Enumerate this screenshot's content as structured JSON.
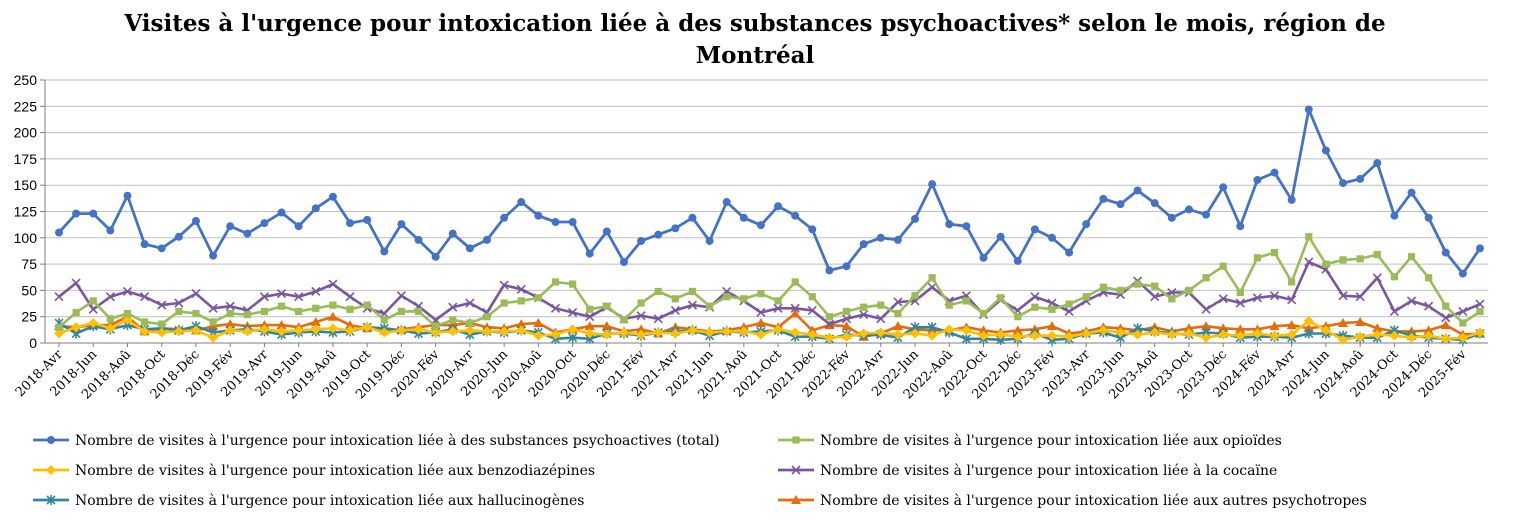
{
  "chart_data": {
    "type": "line",
    "title": "Visites à l'urgence pour intoxication liée à des substances psychoactives* selon le mois, région de Montréal",
    "xlabel": "",
    "ylabel": "",
    "ylim": [
      0,
      250
    ],
    "yticks": [
      0,
      25,
      50,
      75,
      100,
      125,
      150,
      175,
      200,
      225,
      250
    ],
    "grid": true,
    "legend_position": "bottom",
    "x": [
      "2018-Avr",
      "2018-Mai",
      "2018-Jun",
      "2018-Jul",
      "2018-Aoû",
      "2018-Sep",
      "2018-Oct",
      "2018-Nov",
      "2018-Déc",
      "2019-Jan",
      "2019-Fév",
      "2019-Mar",
      "2019-Avr",
      "2019-Mai",
      "2019-Jun",
      "2019-Jul",
      "2019-Aoû",
      "2019-Sep",
      "2019-Oct",
      "2019-Nov",
      "2019-Déc",
      "2020-Jan",
      "2020-Fév",
      "2020-Mar",
      "2020-Avr",
      "2020-Mai",
      "2020-Jun",
      "2020-Jul",
      "2020-Aoû",
      "2020-Sep",
      "2020-Oct",
      "2020-Nov",
      "2020-Déc",
      "2021-Jan",
      "2021-Fév",
      "2021-Mar",
      "2021-Avr",
      "2021-Mai",
      "2021-Jun",
      "2021-Jul",
      "2021-Aoû",
      "2021-Sep",
      "2021-Oct",
      "2021-Nov",
      "2021-Déc",
      "2022-Jan",
      "2022-Fév",
      "2022-Mar",
      "2022-Avr",
      "2022-Mai",
      "2022-Jun",
      "2022-Jul",
      "2022-Aoû",
      "2022-Sep",
      "2022-Oct",
      "2022-Nov",
      "2022-Déc",
      "2023-Jan",
      "2023-Fév",
      "2023-Mar",
      "2023-Avr",
      "2023-Mai",
      "2023-Jun",
      "2023-Jul",
      "2023-Aoû",
      "2023-Sep",
      "2023-Oct",
      "2023-Nov",
      "2023-Déc",
      "2024-Jan",
      "2024-Fév",
      "2024-Mar",
      "2024-Avr",
      "2024-Mai",
      "2024-Jun",
      "2024-Jul",
      "2024-Aoû",
      "2024-Sep",
      "2024-Oct",
      "2024-Nov",
      "2024-Déc",
      "2025-Jan",
      "2025-Fév",
      "2025-Mar"
    ],
    "xtick_labels": [
      "2018-Avr",
      "2018-Jun",
      "2018-Aoû",
      "2018-Oct",
      "2018-Déc",
      "2019-Fév",
      "2019-Avr",
      "2019-Jun",
      "2019-Aoû",
      "2019-Oct",
      "2019-Déc",
      "2020-Fév",
      "2020-Avr",
      "2020-Jun",
      "2020-Aoû",
      "2020-Oct",
      "2020-Déc",
      "2021-Fév",
      "2021-Avr",
      "2021-Jun",
      "2021-Aoû",
      "2021-Oct",
      "2021-Déc",
      "2022-Fév",
      "2022-Avr",
      "2022-Jun",
      "2022-Aoû",
      "2022-Oct",
      "2022-Déc",
      "2023-Fév",
      "2023-Avr",
      "2023-Jun",
      "2023-Aoû",
      "2023-Oct",
      "2023-Déc",
      "2024-Fév",
      "2024-Avr",
      "2024-Jun",
      "2024-Aoû",
      "2024-Oct",
      "2024-Déc",
      "2025-Fév"
    ],
    "series": [
      {
        "name": "Nombre de visites à l'urgence pour intoxication liée à des substances psychoactives (total)",
        "color": "#4472c4",
        "marker": "circle",
        "values": [
          105,
          123,
          123,
          107,
          140,
          94,
          90,
          101,
          116,
          83,
          111,
          104,
          114,
          124,
          111,
          128,
          139,
          114,
          117,
          87,
          113,
          98,
          82,
          104,
          90,
          98,
          119,
          134,
          121,
          115,
          115,
          85,
          106,
          77,
          97,
          103,
          109,
          119,
          97,
          134,
          119,
          112,
          130,
          121,
          108,
          69,
          73,
          94,
          100,
          98,
          118,
          151,
          113,
          111,
          81,
          101,
          78,
          108,
          100,
          86,
          113,
          137,
          132,
          145,
          133,
          119,
          127,
          122,
          148,
          111,
          155,
          162,
          136,
          222,
          183,
          152,
          156,
          171,
          121,
          143,
          119,
          86,
          66,
          90
        ]
      },
      {
        "name": "Nombre de visites à l'urgence pour intoxication liée aux opioïdes",
        "color": "#9bbb59",
        "marker": "square",
        "values": [
          15,
          29,
          40,
          23,
          28,
          20,
          18,
          30,
          28,
          20,
          28,
          27,
          30,
          35,
          30,
          33,
          36,
          32,
          36,
          22,
          30,
          30,
          16,
          22,
          19,
          25,
          38,
          40,
          43,
          58,
          56,
          32,
          35,
          22,
          38,
          49,
          42,
          49,
          35,
          44,
          42,
          47,
          40,
          58,
          44,
          25,
          30,
          34,
          36,
          28,
          45,
          62,
          36,
          40,
          28,
          43,
          25,
          34,
          32,
          37,
          44,
          53,
          50,
          56,
          54,
          42,
          50,
          62,
          73,
          48,
          81,
          86,
          58,
          101,
          75,
          79,
          80,
          84,
          63,
          82,
          62,
          35,
          19,
          30
        ]
      },
      {
        "name": "Nombre de visites à l'urgence pour intoxication liée aux benzodiazépines",
        "color": "#ffc000",
        "marker": "diamond",
        "values": [
          9,
          15,
          19,
          14,
          22,
          11,
          10,
          11,
          12,
          5,
          12,
          11,
          13,
          11,
          12,
          13,
          14,
          12,
          15,
          10,
          12,
          13,
          10,
          11,
          12,
          11,
          11,
          12,
          7,
          8,
          13,
          9,
          8,
          10,
          8,
          10,
          9,
          12,
          10,
          11,
          11,
          8,
          13,
          10,
          8,
          5,
          6,
          9,
          10,
          8,
          9,
          7,
          13,
          12,
          7,
          8,
          6,
          7,
          7,
          6,
          9,
          12,
          10,
          8,
          10,
          8,
          9,
          5,
          8,
          7,
          9,
          7,
          8,
          21,
          12,
          3,
          6,
          8,
          7,
          5,
          7,
          4,
          5,
          10
        ]
      },
      {
        "name": "Nombre de visites à l'urgence pour intoxication liée à la cocaïne",
        "color": "#7a569e",
        "marker": "x",
        "values": [
          44,
          57,
          32,
          44,
          49,
          44,
          36,
          38,
          47,
          33,
          35,
          31,
          44,
          47,
          44,
          49,
          56,
          44,
          33,
          28,
          45,
          35,
          22,
          34,
          38,
          29,
          55,
          51,
          43,
          33,
          29,
          25,
          34,
          23,
          26,
          23,
          31,
          36,
          34,
          49,
          40,
          29,
          33,
          33,
          31,
          18,
          23,
          27,
          23,
          39,
          40,
          53,
          40,
          45,
          27,
          41,
          31,
          44,
          38,
          30,
          40,
          48,
          46,
          59,
          44,
          48,
          48,
          32,
          42,
          38,
          43,
          45,
          41,
          77,
          70,
          45,
          44,
          62,
          30,
          40,
          35,
          24,
          30,
          37
        ]
      },
      {
        "name": "Nombre de visites à l'urgence pour intoxication liée aux hallucinogènes",
        "color": "#31859c",
        "marker": "star",
        "values": [
          19,
          9,
          16,
          13,
          17,
          13,
          14,
          12,
          16,
          10,
          12,
          13,
          11,
          8,
          10,
          11,
          10,
          11,
          15,
          14,
          12,
          9,
          10,
          13,
          8,
          11,
          10,
          12,
          10,
          4,
          5,
          4,
          9,
          9,
          7,
          10,
          11,
          12,
          7,
          11,
          10,
          11,
          12,
          6,
          6,
          4,
          8,
          7,
          8,
          5,
          15,
          15,
          10,
          4,
          4,
          3,
          4,
          9,
          3,
          4,
          9,
          10,
          5,
          14,
          11,
          9,
          8,
          10,
          9,
          5,
          6,
          6,
          5,
          9,
          9,
          7,
          5,
          5,
          12,
          7,
          5,
          4,
          3,
          9
        ]
      },
      {
        "name": "Nombre de visites à l'urgence pour intoxication liée aux autres psychotropes",
        "color": "#e46c0a",
        "marker": "triangle",
        "values": [
          16,
          15,
          17,
          17,
          25,
          11,
          14,
          13,
          12,
          16,
          18,
          16,
          17,
          17,
          15,
          20,
          25,
          17,
          14,
          12,
          13,
          15,
          17,
          17,
          19,
          15,
          14,
          18,
          19,
          10,
          13,
          16,
          16,
          11,
          13,
          9,
          15,
          13,
          11,
          12,
          15,
          19,
          15,
          28,
          12,
          17,
          16,
          6,
          9,
          16,
          13,
          12,
          12,
          15,
          12,
          10,
          12,
          13,
          16,
          9,
          11,
          15,
          14,
          12,
          15,
          11,
          14,
          16,
          14,
          13,
          13,
          16,
          17,
          14,
          16,
          19,
          20,
          14,
          11,
          11,
          12,
          17,
          8,
          9
        ]
      }
    ]
  }
}
